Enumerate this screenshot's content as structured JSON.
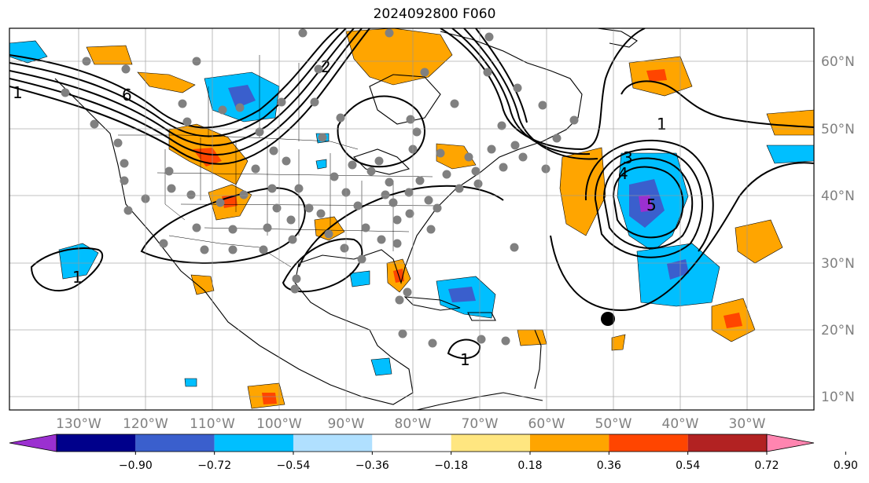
{
  "title": "2024092800 F060",
  "map": {
    "lon_labels": [
      "130°W",
      "120°W",
      "110°W",
      "100°W",
      "90°W",
      "80°W",
      "70°W",
      "60°W",
      "50°W",
      "40°W",
      "30°W"
    ],
    "lat_labels": [
      "60°N",
      "50°N",
      "40°N",
      "30°N",
      "20°N",
      "10°N"
    ],
    "contour_labels": [
      "1",
      "2",
      "3",
      "4",
      "5",
      "6"
    ]
  },
  "colorbar": {
    "ticks": [
      "−0.90",
      "−0.72",
      "−0.54",
      "−0.36",
      "−0.18",
      "0.18",
      "0.36",
      "0.54",
      "0.72",
      "0.90"
    ],
    "colors": [
      "#9b30d0",
      "#00008b",
      "#3a5fcd",
      "#00bfff",
      "#b0e0ff",
      "#ffffff",
      "#ffe680",
      "#ffa500",
      "#ff4500",
      "#b22222",
      "#ff85b0"
    ]
  }
}
